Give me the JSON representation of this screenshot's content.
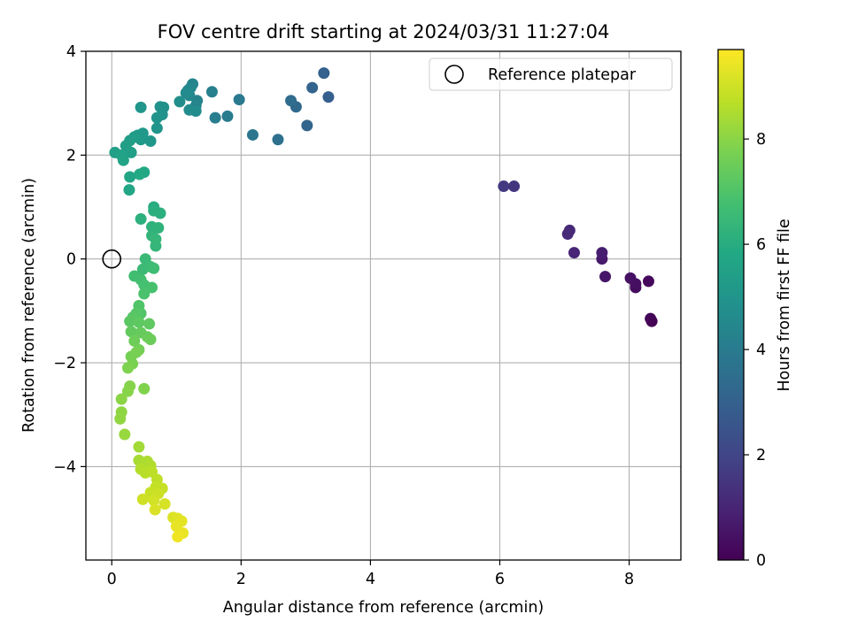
{
  "chart_data": {
    "type": "scatter",
    "title": "FOV centre drift starting at 2024/03/31 11:27:04",
    "xlabel": "Angular distance from reference (arcmin)",
    "ylabel": "Rotation from reference (arcmin)",
    "xlim": [
      -0.4,
      8.8
    ],
    "ylim": [
      -5.8,
      4.0
    ],
    "xticks": [
      0,
      2,
      4,
      6,
      8
    ],
    "yticks": [
      -4,
      -2,
      0,
      2,
      4
    ],
    "xtick_labels": [
      "0",
      "2",
      "4",
      "6",
      "8"
    ],
    "ytick_labels": [
      "−4",
      "−2",
      "0",
      "2",
      "4"
    ],
    "grid": true,
    "legend": {
      "placement": "top-right",
      "entries": [
        "Reference platepar"
      ]
    },
    "reference_point": {
      "x": 0,
      "y": 0
    },
    "colorbar": {
      "label": "Hours from first FF file",
      "colormap": "viridis",
      "range": [
        0,
        9.7
      ],
      "ticks": [
        0,
        2,
        4,
        6,
        8
      ],
      "tick_labels": [
        "0",
        "2",
        "4",
        "6",
        "8"
      ]
    },
    "points": [
      {
        "x": 8.35,
        "y": -1.2,
        "h": 0.0
      },
      {
        "x": 8.33,
        "y": -1.15,
        "h": 0.1
      },
      {
        "x": 8.3,
        "y": -0.43,
        "h": 0.2
      },
      {
        "x": 8.1,
        "y": -0.55,
        "h": 0.3
      },
      {
        "x": 8.1,
        "y": -0.48,
        "h": 0.35
      },
      {
        "x": 8.02,
        "y": -0.37,
        "h": 0.45
      },
      {
        "x": 7.63,
        "y": -0.34,
        "h": 0.6
      },
      {
        "x": 7.58,
        "y": 0.0,
        "h": 0.7
      },
      {
        "x": 7.58,
        "y": 0.12,
        "h": 0.8
      },
      {
        "x": 7.15,
        "y": 0.12,
        "h": 1.0
      },
      {
        "x": 7.08,
        "y": 0.55,
        "h": 1.1
      },
      {
        "x": 7.05,
        "y": 0.48,
        "h": 1.15
      },
      {
        "x": 6.22,
        "y": 1.4,
        "h": 1.5
      },
      {
        "x": 6.06,
        "y": 1.4,
        "h": 1.6
      },
      {
        "x": 3.35,
        "y": 3.12,
        "h": 2.9
      },
      {
        "x": 3.28,
        "y": 3.58,
        "h": 3.0
      },
      {
        "x": 3.1,
        "y": 3.3,
        "h": 3.1
      },
      {
        "x": 3.02,
        "y": 2.57,
        "h": 3.2
      },
      {
        "x": 2.85,
        "y": 2.93,
        "h": 3.3
      },
      {
        "x": 2.77,
        "y": 3.05,
        "h": 3.4
      },
      {
        "x": 2.57,
        "y": 2.3,
        "h": 3.6
      },
      {
        "x": 2.18,
        "y": 2.39,
        "h": 3.8
      },
      {
        "x": 1.97,
        "y": 3.07,
        "h": 3.9
      },
      {
        "x": 1.79,
        "y": 2.75,
        "h": 4.0
      },
      {
        "x": 1.6,
        "y": 2.72,
        "h": 4.1
      },
      {
        "x": 1.55,
        "y": 3.22,
        "h": 4.2
      },
      {
        "x": 1.32,
        "y": 3.05,
        "h": 4.3
      },
      {
        "x": 1.3,
        "y": 2.95,
        "h": 4.35
      },
      {
        "x": 1.25,
        "y": 3.37,
        "h": 4.4
      },
      {
        "x": 1.22,
        "y": 3.3,
        "h": 4.45
      },
      {
        "x": 1.2,
        "y": 3.15,
        "h": 4.5
      },
      {
        "x": 1.18,
        "y": 3.25,
        "h": 4.55
      },
      {
        "x": 1.15,
        "y": 3.2,
        "h": 4.6
      },
      {
        "x": 1.3,
        "y": 2.85,
        "h": 4.65
      },
      {
        "x": 1.2,
        "y": 2.87,
        "h": 4.7
      },
      {
        "x": 1.05,
        "y": 3.03,
        "h": 4.75
      },
      {
        "x": 0.8,
        "y": 2.92,
        "h": 4.8
      },
      {
        "x": 0.75,
        "y": 2.93,
        "h": 4.85
      },
      {
        "x": 0.78,
        "y": 2.78,
        "h": 4.9
      },
      {
        "x": 0.7,
        "y": 2.72,
        "h": 4.95
      },
      {
        "x": 0.7,
        "y": 2.52,
        "h": 5.0
      },
      {
        "x": 0.45,
        "y": 2.92,
        "h": 5.05
      },
      {
        "x": 0.6,
        "y": 2.27,
        "h": 5.1
      },
      {
        "x": 0.48,
        "y": 2.42,
        "h": 5.15
      },
      {
        "x": 0.45,
        "y": 2.3,
        "h": 5.2
      },
      {
        "x": 0.4,
        "y": 2.38,
        "h": 5.25
      },
      {
        "x": 0.35,
        "y": 2.35,
        "h": 5.3
      },
      {
        "x": 0.28,
        "y": 2.28,
        "h": 5.35
      },
      {
        "x": 0.22,
        "y": 2.18,
        "h": 5.4
      },
      {
        "x": 0.3,
        "y": 2.05,
        "h": 5.45
      },
      {
        "x": 0.05,
        "y": 2.05,
        "h": 5.5
      },
      {
        "x": 0.15,
        "y": 2.0,
        "h": 5.55
      },
      {
        "x": 0.18,
        "y": 1.9,
        "h": 5.6
      },
      {
        "x": 0.28,
        "y": 1.58,
        "h": 5.7
      },
      {
        "x": 0.27,
        "y": 1.33,
        "h": 5.75
      },
      {
        "x": 0.5,
        "y": 1.67,
        "h": 5.8
      },
      {
        "x": 0.43,
        "y": 1.63,
        "h": 5.85
      },
      {
        "x": 0.65,
        "y": 1.0,
        "h": 6.0
      },
      {
        "x": 0.65,
        "y": 0.93,
        "h": 6.05
      },
      {
        "x": 0.75,
        "y": 0.88,
        "h": 6.1
      },
      {
        "x": 0.45,
        "y": 0.77,
        "h": 6.15
      },
      {
        "x": 0.62,
        "y": 0.62,
        "h": 6.2
      },
      {
        "x": 0.72,
        "y": 0.6,
        "h": 6.25
      },
      {
        "x": 0.62,
        "y": 0.45,
        "h": 6.3
      },
      {
        "x": 0.68,
        "y": 0.25,
        "h": 6.35
      },
      {
        "x": 0.68,
        "y": 0.38,
        "h": 6.4
      },
      {
        "x": 0.52,
        "y": 0.0,
        "h": 6.5
      },
      {
        "x": 0.48,
        "y": -0.2,
        "h": 6.55
      },
      {
        "x": 0.6,
        "y": -0.15,
        "h": 6.6
      },
      {
        "x": 0.65,
        "y": -0.18,
        "h": 6.65
      },
      {
        "x": 0.35,
        "y": -0.33,
        "h": 6.7
      },
      {
        "x": 0.45,
        "y": -0.4,
        "h": 6.75
      },
      {
        "x": 0.5,
        "y": -0.5,
        "h": 6.8
      },
      {
        "x": 0.62,
        "y": -0.55,
        "h": 6.85
      },
      {
        "x": 0.5,
        "y": -0.67,
        "h": 6.9
      },
      {
        "x": 0.42,
        "y": -0.9,
        "h": 7.0
      },
      {
        "x": 0.45,
        "y": -1.05,
        "h": 7.05
      },
      {
        "x": 0.38,
        "y": -1.05,
        "h": 7.1
      },
      {
        "x": 0.33,
        "y": -1.12,
        "h": 7.15
      },
      {
        "x": 0.28,
        "y": -1.2,
        "h": 7.2
      },
      {
        "x": 0.42,
        "y": -1.22,
        "h": 7.25
      },
      {
        "x": 0.58,
        "y": -1.25,
        "h": 7.3
      },
      {
        "x": 0.3,
        "y": -1.4,
        "h": 7.35
      },
      {
        "x": 0.45,
        "y": -1.42,
        "h": 7.4
      },
      {
        "x": 0.55,
        "y": -1.5,
        "h": 7.45
      },
      {
        "x": 0.6,
        "y": -1.55,
        "h": 7.5
      },
      {
        "x": 0.35,
        "y": -1.58,
        "h": 7.55
      },
      {
        "x": 0.42,
        "y": -1.75,
        "h": 7.6
      },
      {
        "x": 0.3,
        "y": -1.88,
        "h": 7.65
      },
      {
        "x": 0.38,
        "y": -1.8,
        "h": 7.7
      },
      {
        "x": 0.32,
        "y": -2.02,
        "h": 7.75
      },
      {
        "x": 0.25,
        "y": -2.1,
        "h": 7.8
      },
      {
        "x": 0.5,
        "y": -2.5,
        "h": 7.85
      },
      {
        "x": 0.28,
        "y": -2.45,
        "h": 7.9
      },
      {
        "x": 0.25,
        "y": -2.55,
        "h": 7.95
      },
      {
        "x": 0.15,
        "y": -2.7,
        "h": 8.0
      },
      {
        "x": 0.15,
        "y": -2.95,
        "h": 8.05
      },
      {
        "x": 0.13,
        "y": -3.08,
        "h": 8.1
      },
      {
        "x": 0.2,
        "y": -3.38,
        "h": 8.2
      },
      {
        "x": 0.42,
        "y": -3.62,
        "h": 8.35
      },
      {
        "x": 0.42,
        "y": -3.88,
        "h": 8.4
      },
      {
        "x": 0.48,
        "y": -3.95,
        "h": 8.45
      },
      {
        "x": 0.55,
        "y": -3.9,
        "h": 8.5
      },
      {
        "x": 0.6,
        "y": -3.98,
        "h": 8.55
      },
      {
        "x": 0.45,
        "y": -4.05,
        "h": 8.6
      },
      {
        "x": 0.52,
        "y": -4.12,
        "h": 8.65
      },
      {
        "x": 0.62,
        "y": -4.1,
        "h": 8.7
      },
      {
        "x": 0.7,
        "y": -4.25,
        "h": 8.75
      },
      {
        "x": 0.68,
        "y": -4.4,
        "h": 8.8
      },
      {
        "x": 0.78,
        "y": -4.42,
        "h": 8.85
      },
      {
        "x": 0.6,
        "y": -4.5,
        "h": 8.9
      },
      {
        "x": 0.72,
        "y": -4.52,
        "h": 8.95
      },
      {
        "x": 0.48,
        "y": -4.63,
        "h": 9.0
      },
      {
        "x": 0.65,
        "y": -4.65,
        "h": 9.05
      },
      {
        "x": 0.82,
        "y": -4.72,
        "h": 9.1
      },
      {
        "x": 0.67,
        "y": -4.83,
        "h": 9.15
      },
      {
        "x": 0.95,
        "y": -4.98,
        "h": 9.2
      },
      {
        "x": 1.02,
        "y": -5.0,
        "h": 9.25
      },
      {
        "x": 1.08,
        "y": -5.05,
        "h": 9.3
      },
      {
        "x": 1.0,
        "y": -5.15,
        "h": 9.35
      },
      {
        "x": 1.1,
        "y": -5.28,
        "h": 9.4
      },
      {
        "x": 1.02,
        "y": -5.35,
        "h": 9.5
      }
    ]
  }
}
